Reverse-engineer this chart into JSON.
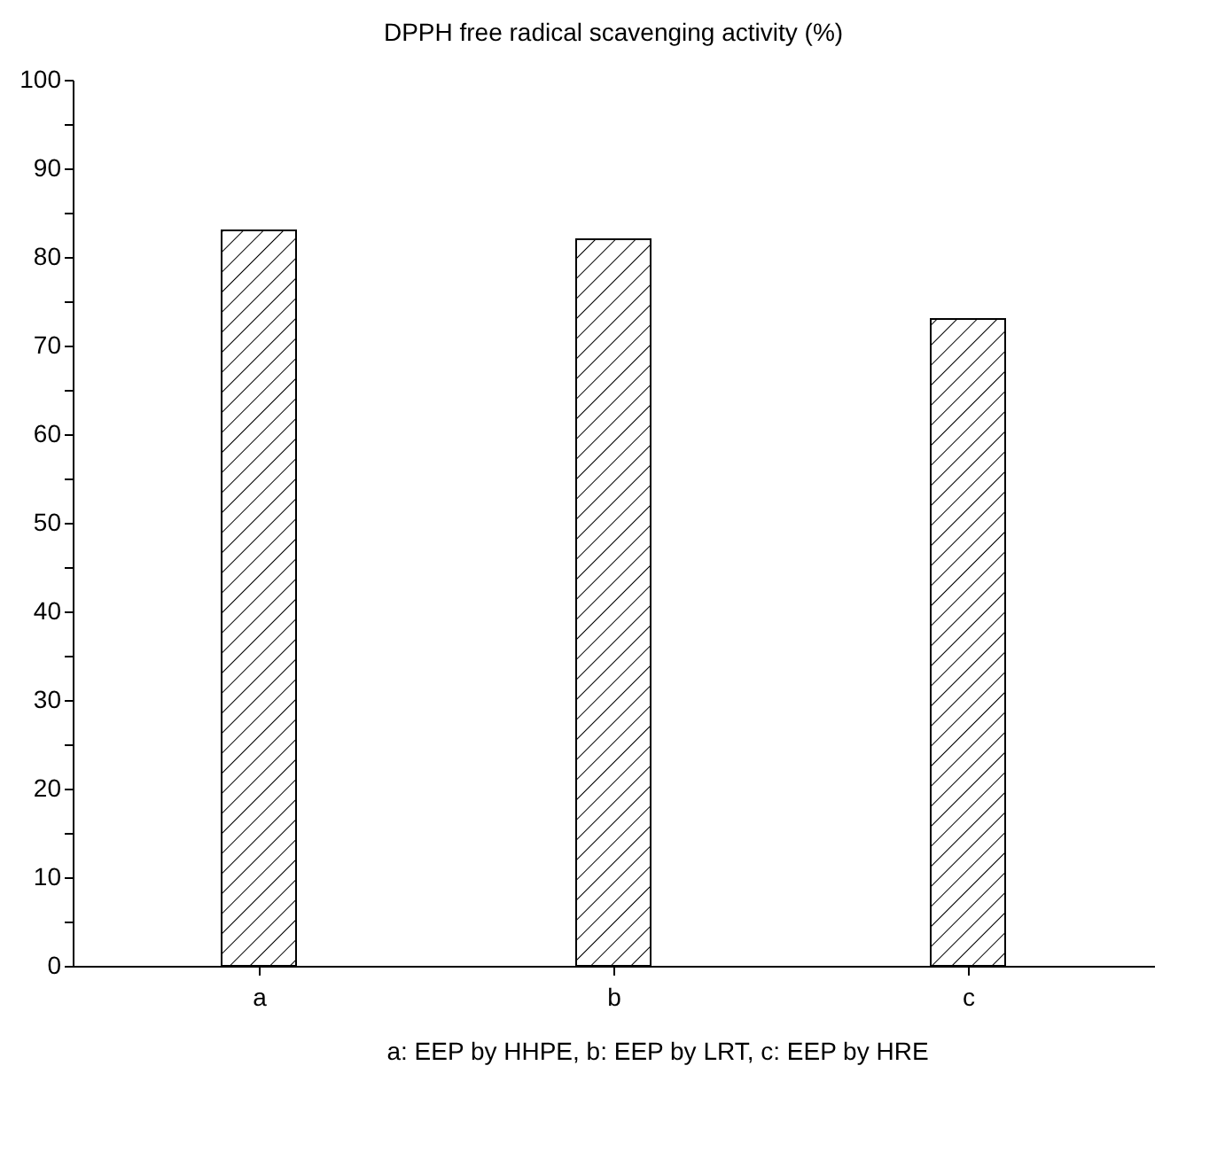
{
  "chart_data": {
    "type": "bar",
    "title": "DPPH free radical scavenging activity (%)",
    "categories": [
      "a",
      "b",
      "c"
    ],
    "values": [
      83,
      82,
      73
    ],
    "color": "#000000",
    "ylim": [
      0,
      100
    ],
    "yticks": [
      0,
      {
        "value": 5,
        "label": null
      },
      10,
      {
        "value": 15,
        "label": null
      },
      20,
      {
        "value": 25,
        "label": null
      },
      30,
      {
        "value": 35,
        "label": null
      },
      40,
      {
        "value": 45,
        "label": null
      },
      50,
      {
        "value": 55,
        "label": null
      },
      60,
      {
        "value": 65,
        "label": null
      },
      70,
      {
        "value": 75,
        "label": null
      },
      80,
      {
        "value": 85,
        "label": null
      },
      90,
      {
        "value": 95,
        "label": null
      },
      100
    ],
    "grid": false,
    "annotations": [
      "a:  EEP by HHPE,  b:  EEP by LRT,  c:  EEP by HRE"
    ]
  }
}
